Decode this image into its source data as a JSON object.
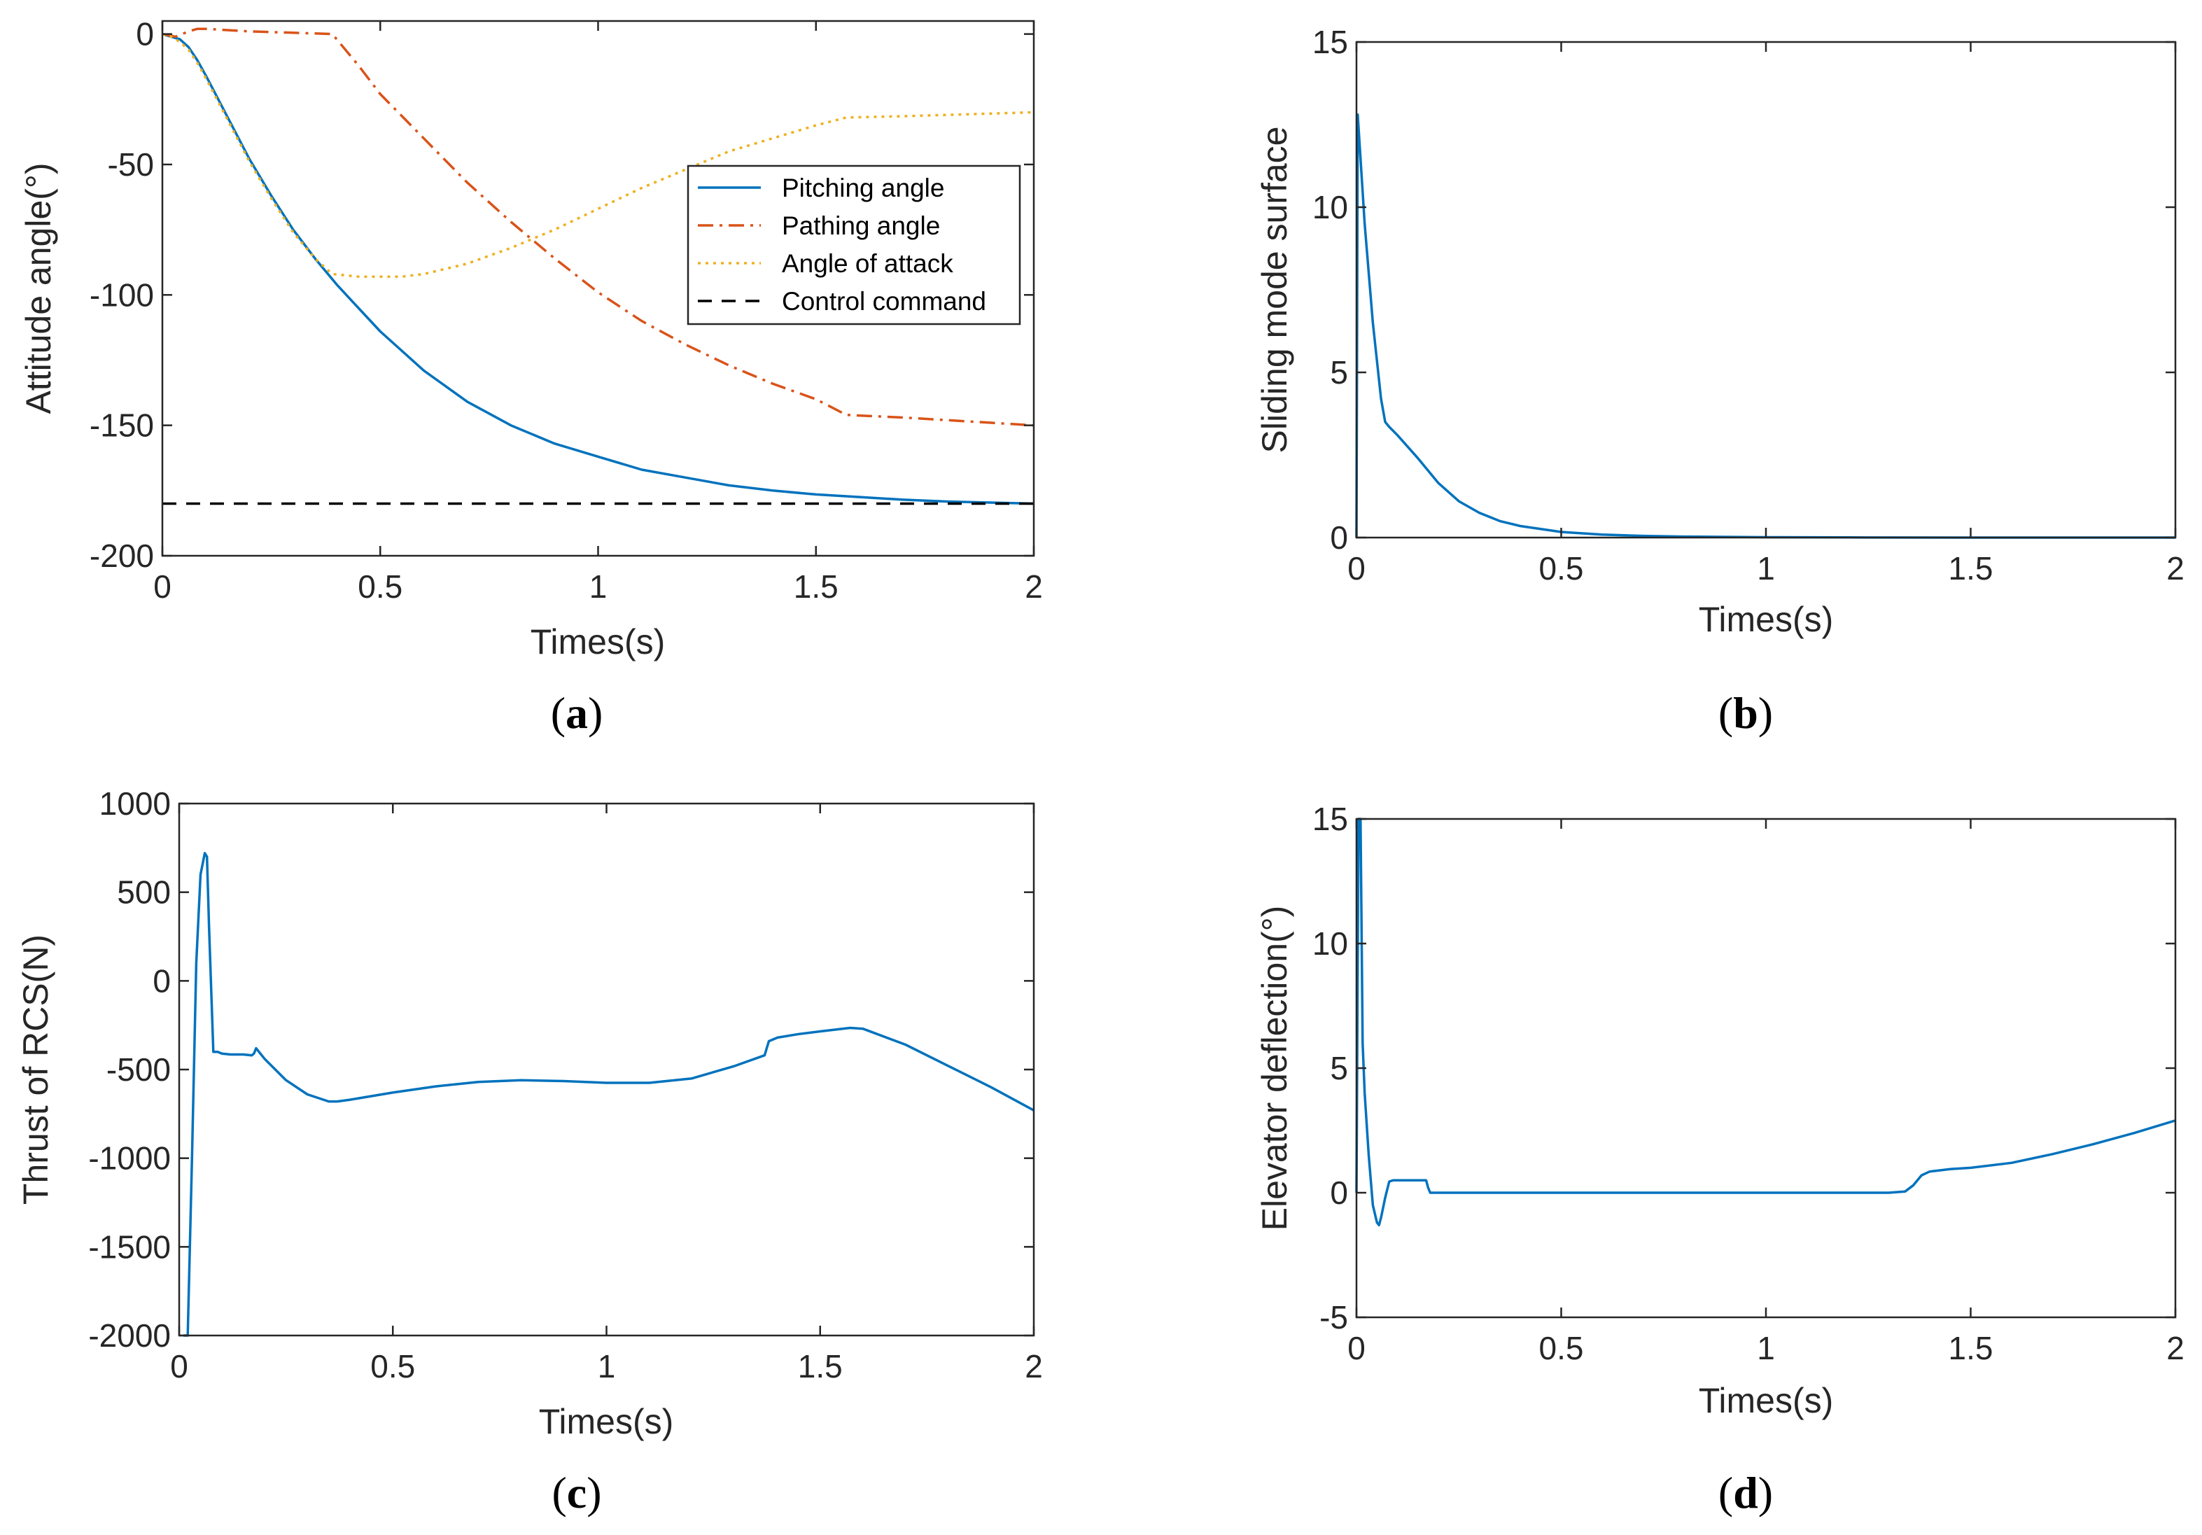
{
  "figure_title": "",
  "colors": {
    "blue": "#0072BD",
    "orange": "#D95319",
    "yellow": "#EDB120",
    "black": "#000000"
  },
  "chart_data": [
    {
      "id": "a",
      "type": "line",
      "caption": {
        "open": "(",
        "letter": "a",
        "close": ")"
      },
      "xlabel": "Times(s)",
      "ylabel": "Attitude angle(°)",
      "xlim": [
        0,
        2
      ],
      "ylim": [
        -200,
        5
      ],
      "xticks": [
        0,
        0.5,
        1,
        1.5,
        2
      ],
      "xtick_labels": [
        "0",
        "0.5",
        "1",
        "1.5",
        "2"
      ],
      "yticks": [
        0,
        -50,
        -100,
        -150,
        -200
      ],
      "ytick_labels": [
        "0",
        "-50",
        "-100",
        "-150",
        "-200"
      ],
      "legend_position": "top-right",
      "series": [
        {
          "name": "Pitching angle",
          "style": "solid",
          "color": "#0072BD",
          "x": [
            0,
            0.02,
            0.04,
            0.06,
            0.08,
            0.1,
            0.15,
            0.2,
            0.25,
            0.3,
            0.35,
            0.4,
            0.45,
            0.5,
            0.6,
            0.7,
            0.8,
            0.9,
            1.0,
            1.1,
            1.2,
            1.3,
            1.4,
            1.5,
            1.6,
            1.7,
            1.8,
            1.9,
            2.0
          ],
          "y": [
            0,
            -1,
            -2,
            -5,
            -10,
            -16,
            -32,
            -48,
            -62,
            -75,
            -86,
            -96,
            -105,
            -114,
            -129,
            -141,
            -150,
            -157,
            -162,
            -167,
            -170,
            -173,
            -175,
            -176.5,
            -177.5,
            -178.5,
            -179.2,
            -179.6,
            -180
          ]
        },
        {
          "name": "Pathing angle",
          "style": "dashdot",
          "color": "#D95319",
          "x": [
            0,
            0.03,
            0.06,
            0.08,
            0.1,
            0.2,
            0.3,
            0.39,
            0.45,
            0.5,
            0.6,
            0.7,
            0.8,
            0.9,
            1.0,
            1.1,
            1.2,
            1.3,
            1.4,
            1.5,
            1.57,
            1.7,
            1.8,
            1.9,
            2.0
          ],
          "y": [
            0,
            -1,
            1,
            2,
            2,
            1,
            0.5,
            0,
            -12,
            -23,
            -40,
            -57,
            -72,
            -86,
            -99,
            -110,
            -119,
            -127,
            -134,
            -140,
            -146,
            -147,
            -148,
            -149,
            -150
          ]
        },
        {
          "name": "Angle of attack",
          "style": "dotted",
          "color": "#EDB120",
          "x": [
            0,
            0.02,
            0.04,
            0.06,
            0.08,
            0.1,
            0.15,
            0.2,
            0.25,
            0.3,
            0.35,
            0.39,
            0.45,
            0.5,
            0.55,
            0.6,
            0.7,
            0.8,
            0.9,
            1.0,
            1.1,
            1.2,
            1.3,
            1.4,
            1.5,
            1.57,
            1.7,
            1.8,
            1.9,
            2.0
          ],
          "y": [
            0,
            -1,
            -3,
            -6,
            -11,
            -17,
            -33,
            -49,
            -63,
            -76,
            -86,
            -92,
            -93,
            -93,
            -93,
            -92,
            -88,
            -82,
            -75,
            -67,
            -59,
            -52,
            -45,
            -40,
            -35,
            -32,
            -31.5,
            -31,
            -30.5,
            -30
          ]
        },
        {
          "name": "Control command",
          "style": "dashed",
          "color": "#000000",
          "x": [
            0,
            2
          ],
          "y": [
            -180,
            -180
          ]
        }
      ]
    },
    {
      "id": "b",
      "type": "line",
      "caption": {
        "open": "(",
        "letter": "b",
        "close": ")"
      },
      "xlabel": "Times(s)",
      "ylabel": "Sliding mode surface",
      "xlim": [
        0,
        2
      ],
      "ylim": [
        0,
        15
      ],
      "xticks": [
        0,
        0.5,
        1,
        1.5,
        2
      ],
      "xtick_labels": [
        "0",
        "0.5",
        "1",
        "1.5",
        "2"
      ],
      "yticks": [
        0,
        5,
        10,
        15
      ],
      "ytick_labels": [
        "0",
        "5",
        "10",
        "15"
      ],
      "series": [
        {
          "name": "Sliding mode surface",
          "style": "solid",
          "color": "#0072BD",
          "x": [
            0,
            0.003,
            0.02,
            0.04,
            0.06,
            0.07,
            0.08,
            0.1,
            0.15,
            0.2,
            0.25,
            0.3,
            0.35,
            0.4,
            0.5,
            0.6,
            0.7,
            0.8,
            1.0,
            1.2,
            1.5,
            2.0
          ],
          "y": [
            0,
            12.8,
            9.5,
            6.5,
            4.2,
            3.5,
            3.35,
            3.1,
            2.4,
            1.65,
            1.1,
            0.75,
            0.5,
            0.35,
            0.17,
            0.09,
            0.05,
            0.03,
            0.01,
            0.005,
            0.0,
            0.0
          ]
        }
      ]
    },
    {
      "id": "c",
      "type": "line",
      "caption": {
        "open": "(",
        "letter": "c",
        "close": ")"
      },
      "xlabel": "Times(s)",
      "ylabel": "Thrust of RCS(N)",
      "xlim": [
        0,
        2
      ],
      "ylim": [
        -2000,
        1000
      ],
      "xticks": [
        0,
        0.5,
        1,
        1.5,
        2
      ],
      "xtick_labels": [
        "0",
        "0.5",
        "1",
        "1.5",
        "2"
      ],
      "yticks": [
        1000,
        500,
        0,
        -500,
        -1000,
        -1500,
        -2000
      ],
      "ytick_labels": [
        "1000",
        "500",
        "0",
        "-500",
        "-1000",
        "-1500",
        "-2000"
      ],
      "series": [
        {
          "name": "Thrust of RCS",
          "style": "solid",
          "color": "#0072BD",
          "x": [
            0.01,
            0.02,
            0.03,
            0.04,
            0.05,
            0.06,
            0.065,
            0.07,
            0.08,
            0.09,
            0.1,
            0.12,
            0.15,
            0.17,
            0.175,
            0.18,
            0.2,
            0.25,
            0.3,
            0.35,
            0.37,
            0.4,
            0.5,
            0.6,
            0.7,
            0.8,
            0.9,
            1.0,
            1.1,
            1.2,
            1.3,
            1.37,
            1.375,
            1.38,
            1.4,
            1.45,
            1.5,
            1.57,
            1.6,
            1.7,
            1.8,
            1.9,
            2.0
          ],
          "y": [
            -2000,
            -2000,
            -1000,
            100,
            600,
            720,
            700,
            300,
            -400,
            -400,
            -410,
            -415,
            -415,
            -420,
            -410,
            -380,
            -440,
            -560,
            -640,
            -680,
            -680,
            -670,
            -630,
            -595,
            -570,
            -560,
            -565,
            -575,
            -575,
            -550,
            -480,
            -420,
            -380,
            -340,
            -320,
            -300,
            -285,
            -265,
            -270,
            -360,
            -480,
            -600,
            -730
          ]
        }
      ]
    },
    {
      "id": "d",
      "type": "line",
      "caption": {
        "open": "(",
        "letter": "d",
        "close": ")"
      },
      "xlabel": "Times(s)",
      "ylabel": "Elevator deflection(°)",
      "xlim": [
        0,
        2
      ],
      "ylim": [
        -5,
        15
      ],
      "xticks": [
        0,
        0.5,
        1,
        1.5,
        2
      ],
      "xtick_labels": [
        "0",
        "0.5",
        "1",
        "1.5",
        "2"
      ],
      "yticks": [
        -5,
        0,
        5,
        10,
        15
      ],
      "ytick_labels": [
        "-5",
        "0",
        "5",
        "10",
        "15"
      ],
      "series": [
        {
          "name": "Elevator deflection",
          "style": "solid",
          "color": "#0072BD",
          "x": [
            0,
            0.005,
            0.01,
            0.015,
            0.02,
            0.03,
            0.04,
            0.05,
            0.055,
            0.06,
            0.07,
            0.08,
            0.09,
            0.12,
            0.15,
            0.17,
            0.175,
            0.18,
            0.185,
            0.2,
            0.5,
            1.0,
            1.3,
            1.34,
            1.36,
            1.38,
            1.4,
            1.45,
            1.5,
            1.6,
            1.7,
            1.8,
            1.9,
            2.0
          ],
          "y": [
            0,
            15,
            15,
            6,
            4,
            1.5,
            -0.5,
            -1.2,
            -1.3,
            -1.0,
            -0.2,
            0.45,
            0.5,
            0.5,
            0.5,
            0.5,
            0.2,
            0.0,
            0.0,
            0.0,
            0.0,
            0.0,
            0.0,
            0.05,
            0.3,
            0.7,
            0.85,
            0.95,
            1.0,
            1.2,
            1.55,
            1.95,
            2.4,
            2.9
          ]
        }
      ]
    }
  ]
}
